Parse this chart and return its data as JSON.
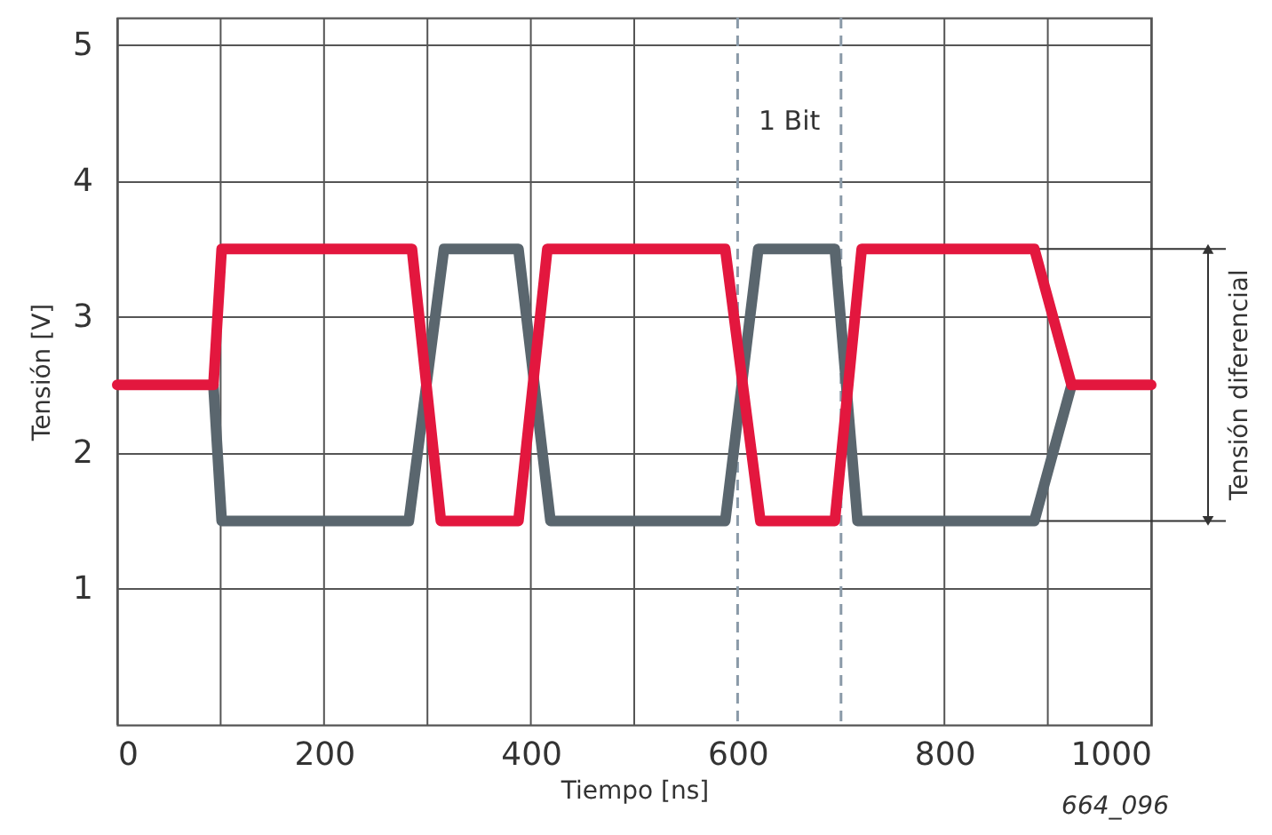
{
  "chart_data": {
    "type": "line",
    "xlabel": "Tiempo [ns]",
    "ylabel": "Tensión [V]",
    "xlim": [
      0,
      1000
    ],
    "ylim": [
      0,
      5.2
    ],
    "xticks": [
      0,
      {
        "value": 100,
        "label": null
      },
      200,
      {
        "value": 300,
        "label": null
      },
      400,
      {
        "value": 500,
        "label": null
      },
      600,
      800,
      {
        "value": 900,
        "label": null
      },
      1000
    ],
    "yticks": [
      1,
      2,
      3,
      4,
      5
    ],
    "grid": true,
    "marker": "none",
    "line_style": "solid",
    "series": [
      {
        "color": "#5a666e",
        "x": [
          93,
          101,
          282,
          316,
          388,
          419,
          588,
          620,
          694,
          716,
          887,
          923
        ],
        "values": [
          2.5,
          1.5,
          1.5,
          3.5,
          3.5,
          1.5,
          1.5,
          3.5,
          3.5,
          1.5,
          1.5,
          2.5
        ]
      },
      {
        "color": "#e3173e",
        "x": [
          0,
          93,
          101,
          285,
          313,
          388,
          416,
          588,
          622,
          694,
          720,
          887,
          923,
          1000
        ],
        "values": [
          2.5,
          2.5,
          3.5,
          3.5,
          1.5,
          1.5,
          3.5,
          3.5,
          1.5,
          1.5,
          3.5,
          3.5,
          2.5,
          2.5
        ]
      }
    ],
    "ref_lines": [
      {
        "axis": "x",
        "value": 600,
        "color": "#8a9aa8",
        "line_style": "dashed"
      },
      {
        "axis": "x",
        "value": 700,
        "color": "#8a9aa8",
        "line_style": "dashed"
      },
      {
        "axis": "y",
        "value": 1.5,
        "color": "#333333",
        "line_style": "solid"
      },
      {
        "axis": "y",
        "value": 3.5,
        "color": "#333333",
        "line_style": "solid"
      }
    ],
    "annotations": [
      "1 Bit",
      "Tensión diferencial",
      "664_096"
    ]
  }
}
